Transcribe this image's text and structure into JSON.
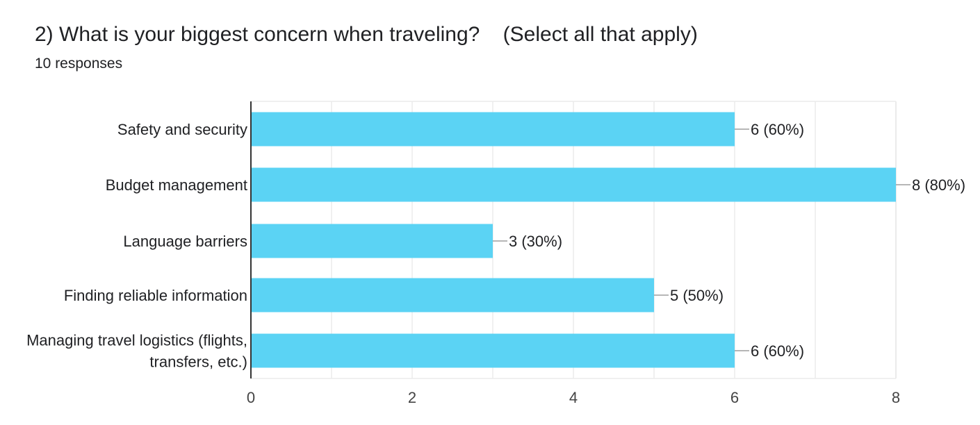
{
  "question": {
    "title": "2) What is your biggest concern when traveling?    (Select all that apply)",
    "response_count": "10 responses"
  },
  "colors": {
    "bar": "#5bd3f4",
    "grid": "#ebebeb",
    "axis": "#333333",
    "leader": "#9e9e9e",
    "text": "#202124"
  },
  "chart_data": {
    "type": "bar",
    "orientation": "horizontal",
    "title": "",
    "xlabel": "",
    "ylabel": "",
    "categories": [
      [
        "Safety and security"
      ],
      [
        "Budget management"
      ],
      [
        "Language barriers"
      ],
      [
        "Finding reliable information"
      ],
      [
        "Managing travel logistics (flights,",
        "transfers, etc.)"
      ]
    ],
    "values": [
      6,
      8,
      3,
      5,
      6
    ],
    "data_labels": [
      "6 (60%)",
      "8 (80%)",
      "3 (30%)",
      "5 (50%)",
      "6 (60%)"
    ],
    "xlim": [
      0,
      8
    ],
    "xticks": [
      0,
      2,
      4,
      6,
      8
    ],
    "grid": true,
    "legend": "none"
  }
}
